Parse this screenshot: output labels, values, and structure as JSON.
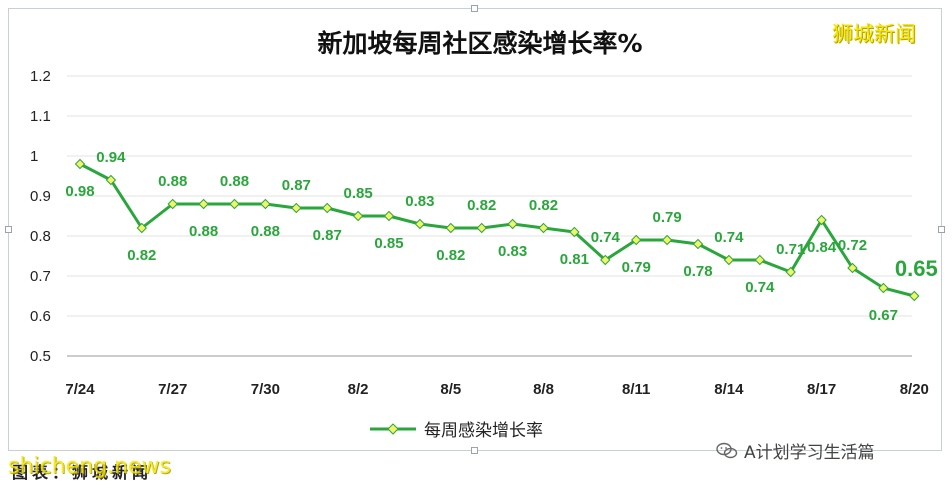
{
  "chart_data": {
    "type": "line",
    "title": "新加坡每周社区感染增长率%",
    "x": [
      "7/24",
      "7/25",
      "7/26",
      "7/27",
      "7/28",
      "7/29",
      "7/30",
      "7/31",
      "8/1",
      "8/2",
      "8/3",
      "8/4",
      "8/5",
      "8/6",
      "8/7",
      "8/8",
      "8/9",
      "8/10",
      "8/11",
      "8/12",
      "8/13",
      "8/14",
      "8/15",
      "8/16",
      "8/17",
      "8/18",
      "8/19",
      "8/20"
    ],
    "x_tick_labels": [
      "7/24",
      "7/27",
      "7/30",
      "8/2",
      "8/5",
      "8/8",
      "8/11",
      "8/14",
      "8/17",
      "8/20"
    ],
    "series": [
      {
        "name": "每周感染增长率",
        "values": [
          0.98,
          0.94,
          0.82,
          0.88,
          0.88,
          0.88,
          0.88,
          0.87,
          0.87,
          0.85,
          0.85,
          0.83,
          0.82,
          0.82,
          0.83,
          0.82,
          0.81,
          0.74,
          0.79,
          0.79,
          0.78,
          0.74,
          0.74,
          0.71,
          0.84,
          0.72,
          0.67,
          0.65
        ]
      }
    ],
    "ylim": [
      0.5,
      1.2
    ],
    "y_ticks": [
      "0.5",
      "0.6",
      "0.7",
      "0.8",
      "0.9",
      "1",
      "1.1",
      "1.2"
    ],
    "grid": true,
    "legend": "bottom",
    "line_color": "#2aa63c",
    "marker_color": "#f3f36a"
  },
  "brand": "狮城新闻",
  "source": "图表：狮城新闻",
  "site_watermark": "shicheng.news",
  "wechat_account": "A计划学习生活篇",
  "colors": {
    "line": "#2aa63c",
    "marker": "#f3f36a",
    "brand": "#f6e600",
    "grid": "#e3e3e3"
  }
}
